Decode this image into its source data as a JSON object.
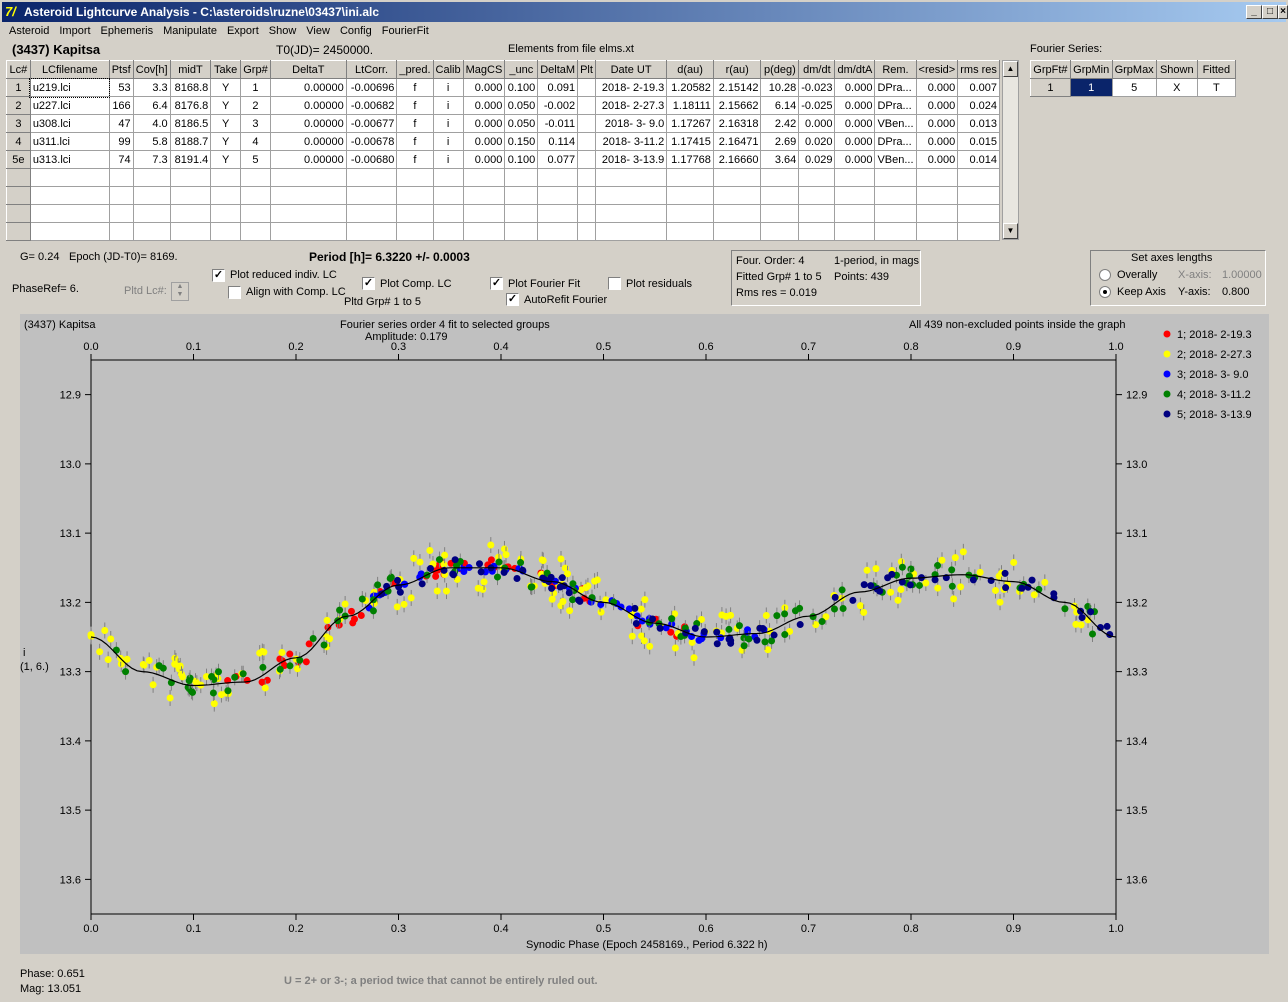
{
  "window": {
    "title": "Asteroid Lightcurve Analysis - C:\\asteroids\\ruzne\\03437\\ini.alc",
    "icon": "7/"
  },
  "menu": [
    "Asteroid",
    "Import",
    "Ephemeris",
    "Manipulate",
    "Export",
    "Show",
    "View",
    "Config",
    "FourierFit"
  ],
  "header": {
    "asteroid": "(3437) Kapitsa",
    "t0": "T0(JD)= 2450000.",
    "elements": "Elements from file elms.xt",
    "fourier_label": "Fourier Series:"
  },
  "table": {
    "columns": [
      "Lc#",
      "LCfilename",
      "Ptsf",
      "Cov[h]",
      "midT",
      "Take",
      "Grp#",
      "DeltaT",
      "LtCorr.",
      "_pred.",
      "Calib",
      "MagCS",
      "_unc",
      "DeltaM",
      "Plt",
      "Date UT",
      "d(au)",
      "r(au)",
      "p(deg)",
      "dm/dt",
      "dm/dtA",
      "Rem.",
      "<resid>",
      "rms res"
    ],
    "rows": [
      [
        "1",
        "u219.lci",
        "53",
        "3.3",
        "8168.8",
        "Y",
        "1",
        "0.00000",
        "-0.00696",
        "f",
        "i",
        "0.000",
        "0.100",
        "0.091",
        "",
        "2018- 2-19.3",
        "1.20582",
        "2.15142",
        "10.28",
        "-0.023",
        "0.000",
        "DPra...",
        "0.000",
        "0.007"
      ],
      [
        "2",
        "u227.lci",
        "166",
        "6.4",
        "8176.8",
        "Y",
        "2",
        "0.00000",
        "-0.00682",
        "f",
        "i",
        "0.000",
        "0.050",
        "-0.002",
        "",
        "2018- 2-27.3",
        "1.18111",
        "2.15662",
        "6.14",
        "-0.025",
        "0.000",
        "DPra...",
        "0.000",
        "0.024"
      ],
      [
        "3",
        "u308.lci",
        "47",
        "4.0",
        "8186.5",
        "Y",
        "3",
        "0.00000",
        "-0.00677",
        "f",
        "i",
        "0.000",
        "0.050",
        "-0.011",
        "",
        "2018- 3- 9.0",
        "1.17267",
        "2.16318",
        "2.42",
        "0.000",
        "0.000",
        "VBen...",
        "0.000",
        "0.013"
      ],
      [
        "4",
        "u311.lci",
        "99",
        "5.8",
        "8188.7",
        "Y",
        "4",
        "0.00000",
        "-0.00678",
        "f",
        "i",
        "0.000",
        "0.150",
        "0.114",
        "",
        "2018- 3-11.2",
        "1.17415",
        "2.16471",
        "2.69",
        "0.020",
        "0.000",
        "DPra...",
        "0.000",
        "0.015"
      ],
      [
        "5e",
        "u313.lci",
        "74",
        "7.3",
        "8191.4",
        "Y",
        "5",
        "0.00000",
        "-0.00680",
        "f",
        "i",
        "0.000",
        "0.100",
        "0.077",
        "",
        "2018- 3-13.9",
        "1.17768",
        "2.16660",
        "3.64",
        "0.029",
        "0.000",
        "VBen...",
        "0.000",
        "0.014"
      ]
    ]
  },
  "fourier_table": {
    "columns": [
      "GrpFt#",
      "GrpMin",
      "GrpMax",
      "Shown",
      "Fitted"
    ],
    "row": [
      "1",
      "1",
      "5",
      "X",
      "T"
    ]
  },
  "controls": {
    "g": "G= 0.24",
    "epoch": "Epoch (JD-T0)= 8169.",
    "period": "Period [h]= 6.3220 +/- 0.0003",
    "phaseref": "PhaseRef= 6.",
    "pltd_lc": "Pltd Lc#:",
    "plot_reduced": "Plot reduced indiv. LC",
    "align_comp": "Align with Comp. LC",
    "plot_comp": "Plot Comp. LC",
    "pltd_grp": "Pltd Grp#  1   to   5",
    "plot_fourier": "Plot Fourier Fit",
    "autorefit": "AutoRefit Fourier",
    "plot_resid": "Plot residuals"
  },
  "fit_info": {
    "order": "Four. Order:  4",
    "mode": "1-period, in mags",
    "fitted": "Fitted Grp# 1 to 5",
    "points": "Points: 439",
    "rms": "Rms res     = 0.019"
  },
  "axes_box": {
    "title": "Set axes lengths",
    "overally": "Overally",
    "keep": "Keep Axis",
    "xaxis": "X-axis:",
    "xval": "1.00000",
    "yaxis": "Y-axis:",
    "yval": "0.800"
  },
  "plot": {
    "name": "(3437) Kapitsa",
    "subtitle": "Fourier series order 4 fit to selected groups",
    "amplitude": "Amplitude: 0.179",
    "info": "All 439 non-excluded points inside the graph",
    "ylabel1": "i",
    "ylabel2": "(1, 6.)",
    "xlabel": "Synodic Phase (Epoch 2458169., Period 6.322 h)"
  },
  "status": {
    "phase": "Phase:  0.651",
    "mag": "Mag:    13.051",
    "note": "U = 2+ or 3-; a period twice that cannot be entirely ruled out."
  },
  "chart_data": {
    "type": "scatter",
    "xlim": [
      0,
      1
    ],
    "ylim": [
      13.65,
      12.85
    ],
    "x_ticks": [
      "0.0",
      "0.1",
      "0.2",
      "0.3",
      "0.4",
      "0.5",
      "0.6",
      "0.7",
      "0.8",
      "0.9",
      "1.0"
    ],
    "y_ticks": [
      "12.9",
      "13.0",
      "13.1",
      "13.2",
      "13.3",
      "13.4",
      "13.5",
      "13.6"
    ],
    "legend": [
      "1; 2018- 2-19.3",
      "2; 2018- 2-27.3",
      "3; 2018- 3- 9.0",
      "4; 2018- 3-11.2",
      "5; 2018- 3-13.9"
    ],
    "colors": [
      "#ff0000",
      "#ffff00",
      "#0000ff",
      "#008000",
      "#000080"
    ],
    "fourier_curve": {
      "phase": [
        0,
        0.05,
        0.1,
        0.15,
        0.2,
        0.25,
        0.3,
        0.35,
        0.4,
        0.45,
        0.5,
        0.55,
        0.6,
        0.65,
        0.7,
        0.75,
        0.8,
        0.85,
        0.9,
        0.95,
        1.0
      ],
      "mag": [
        13.25,
        13.3,
        13.32,
        13.315,
        13.28,
        13.22,
        13.175,
        13.15,
        13.15,
        13.17,
        13.2,
        13.23,
        13.25,
        13.245,
        13.22,
        13.185,
        13.165,
        13.16,
        13.17,
        13.2,
        13.25
      ]
    },
    "series": [
      {
        "name": "1; 2018- 2-19.3",
        "range": [
          0.13,
          0.6
        ]
      },
      {
        "name": "2; 2018- 2-27.3",
        "range": [
          0,
          1
        ]
      },
      {
        "name": "3; 2018- 3- 9.0",
        "range": [
          0.27,
          0.66
        ]
      },
      {
        "name": "4; 2018- 3-11.2",
        "range": [
          0,
          1
        ]
      },
      {
        "name": "5; 2018- 3-13.9",
        "range": [
          0.28,
          1
        ]
      }
    ]
  }
}
